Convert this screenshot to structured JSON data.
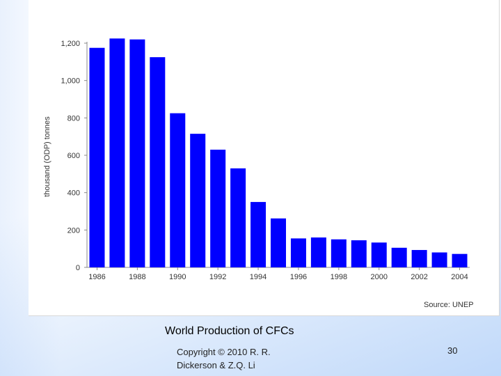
{
  "slide": {
    "caption": "World Production of CFCs",
    "copyright_line1": "Copyright © 2010  R. R.",
    "copyright_line2": "Dickerson & Z.Q. Li",
    "page_number": "30"
  },
  "chart_source": "Source: UNEP",
  "chart_data": {
    "type": "bar",
    "title": "",
    "ylabel": "thousand (ODP) tonnes",
    "xlabel": "",
    "ylim": [
      0,
      1200
    ],
    "yticks": [
      0,
      200,
      400,
      600,
      800,
      1000,
      1200
    ],
    "ytick_labels": [
      "0",
      "200",
      "400",
      "600",
      "800",
      "1,000",
      "1,200"
    ],
    "categories": [
      "1986",
      "1987",
      "1988",
      "1989",
      "1990",
      "1991",
      "1992",
      "1993",
      "1994",
      "1995",
      "1996",
      "1997",
      "1998",
      "1999",
      "2000",
      "2001",
      "2002",
      "2003",
      "2004"
    ],
    "xtick_labels": [
      "1986",
      "",
      "1988",
      "",
      "1990",
      "",
      "1992",
      "",
      "1994",
      "",
      "1996",
      "",
      "1998",
      "",
      "2000",
      "",
      "2002",
      "",
      "2004"
    ],
    "values": [
      1175,
      1225,
      1220,
      1125,
      825,
      715,
      630,
      530,
      350,
      262,
      155,
      160,
      150,
      145,
      133,
      105,
      93,
      80,
      72
    ],
    "bar_color": "#0000ff",
    "grid": false
  }
}
